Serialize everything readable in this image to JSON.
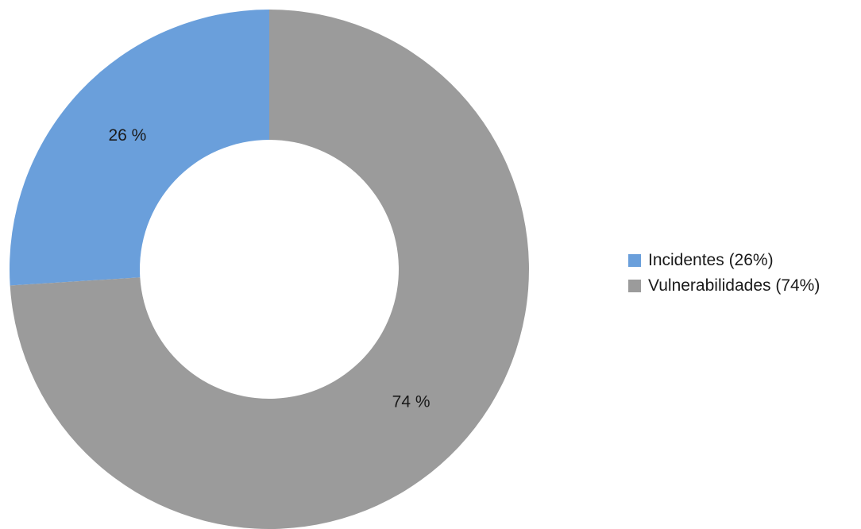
{
  "chart_data": {
    "type": "pie",
    "variant": "donut",
    "title": "",
    "slices": [
      {
        "name": "Incidentes",
        "value": 26,
        "label": "26 %",
        "legend_label": "Incidentes (26%)",
        "color": "#6a9fdb"
      },
      {
        "name": "Vulnerabilidades",
        "value": 74,
        "label": "74 %",
        "legend_label": "Vulnerabilidades (74%)",
        "color": "#9b9b9b"
      }
    ],
    "legend_position": "right"
  },
  "legend": {
    "items": [
      {
        "label": "Incidentes (26%)",
        "color": "#6a9fdb"
      },
      {
        "label": "Vulnerabilidades (74%)",
        "color": "#9b9b9b"
      }
    ]
  }
}
